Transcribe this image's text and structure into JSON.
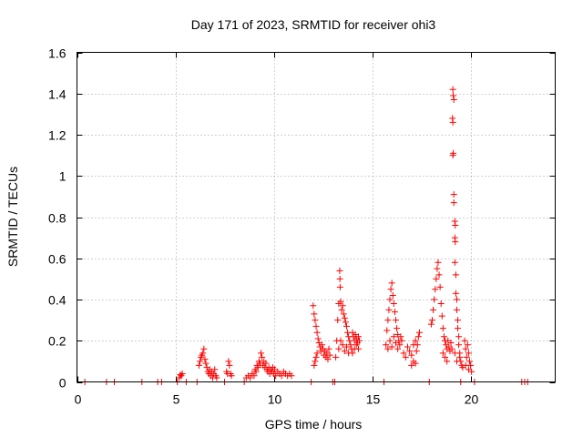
{
  "chart_data": {
    "type": "scatter",
    "title": "Day 171 of 2023, SRMTID for receiver ohi3",
    "xlabel": "GPS time / hours",
    "ylabel": "SRMTID / TECUs",
    "xlim": [
      0,
      24.3
    ],
    "ylim": [
      0,
      1.6
    ],
    "xticks": [
      0,
      5,
      10,
      15,
      20
    ],
    "xtick_labels": [
      "0",
      "5",
      "10",
      "15",
      "20"
    ],
    "yticks": [
      0,
      0.2,
      0.4,
      0.6,
      0.8,
      1.0,
      1.2,
      1.4,
      1.6
    ],
    "ytick_labels": [
      "0",
      "0.2",
      "0.4",
      "0.6",
      "0.8",
      "1",
      "1.2",
      "1.4",
      "1.6"
    ],
    "grid": true,
    "marker": "plus",
    "marker_color": "#ff0000",
    "series": [
      {
        "name": "SRMTID",
        "points": [
          [
            0.4,
            0.0
          ],
          [
            1.5,
            0.0
          ],
          [
            1.9,
            0.0
          ],
          [
            3.3,
            0.0
          ],
          [
            4.1,
            0.0
          ],
          [
            4.3,
            0.0
          ],
          [
            5.1,
            0.0
          ],
          [
            5.2,
            0.02
          ],
          [
            5.25,
            0.035
          ],
          [
            5.3,
            0.03
          ],
          [
            5.35,
            0.04
          ],
          [
            5.55,
            0.0
          ],
          [
            6.1,
            0.0
          ],
          [
            6.2,
            0.08
          ],
          [
            6.25,
            0.1
          ],
          [
            6.3,
            0.12
          ],
          [
            6.35,
            0.13
          ],
          [
            6.4,
            0.14
          ],
          [
            6.45,
            0.16
          ],
          [
            6.5,
            0.11
          ],
          [
            6.55,
            0.09
          ],
          [
            6.6,
            0.07
          ],
          [
            6.65,
            0.05
          ],
          [
            6.7,
            0.04
          ],
          [
            6.75,
            0.06
          ],
          [
            6.8,
            0.03
          ],
          [
            6.85,
            0.05
          ],
          [
            6.9,
            0.02
          ],
          [
            6.95,
            0.04
          ],
          [
            7.0,
            0.06
          ],
          [
            7.05,
            0.03
          ],
          [
            7.1,
            0.02
          ],
          [
            7.5,
            0.0
          ],
          [
            7.6,
            0.05
          ],
          [
            7.65,
            0.04
          ],
          [
            7.7,
            0.1
          ],
          [
            7.75,
            0.08
          ],
          [
            7.8,
            0.04
          ],
          [
            7.85,
            0.03
          ],
          [
            8.5,
            0.0
          ],
          [
            8.6,
            0.02
          ],
          [
            8.7,
            0.03
          ],
          [
            8.8,
            0.02
          ],
          [
            8.9,
            0.04
          ],
          [
            9.0,
            0.03
          ],
          [
            9.05,
            0.06
          ],
          [
            9.1,
            0.05
          ],
          [
            9.15,
            0.08
          ],
          [
            9.2,
            0.07
          ],
          [
            9.25,
            0.1
          ],
          [
            9.3,
            0.09
          ],
          [
            9.35,
            0.14
          ],
          [
            9.4,
            0.12
          ],
          [
            9.45,
            0.08
          ],
          [
            9.5,
            0.1
          ],
          [
            9.55,
            0.07
          ],
          [
            9.6,
            0.09
          ],
          [
            9.65,
            0.06
          ],
          [
            9.7,
            0.05
          ],
          [
            9.75,
            0.07
          ],
          [
            9.8,
            0.04
          ],
          [
            9.85,
            0.06
          ],
          [
            9.9,
            0.05
          ],
          [
            9.95,
            0.07
          ],
          [
            10.0,
            0.04
          ],
          [
            10.05,
            0.06
          ],
          [
            10.1,
            0.03
          ],
          [
            10.2,
            0.05
          ],
          [
            10.3,
            0.04
          ],
          [
            10.4,
            0.03
          ],
          [
            10.5,
            0.05
          ],
          [
            10.6,
            0.04
          ],
          [
            10.7,
            0.03
          ],
          [
            10.8,
            0.04
          ],
          [
            10.9,
            0.03
          ],
          [
            11.9,
            0.0
          ],
          [
            12.0,
            0.37
          ],
          [
            12.05,
            0.33
          ],
          [
            12.1,
            0.3
          ],
          [
            12.15,
            0.27
          ],
          [
            12.2,
            0.24
          ],
          [
            12.25,
            0.21
          ],
          [
            12.3,
            0.19
          ],
          [
            12.35,
            0.17
          ],
          [
            12.4,
            0.15
          ],
          [
            12.05,
            0.08
          ],
          [
            12.1,
            0.1
          ],
          [
            12.15,
            0.12
          ],
          [
            12.2,
            0.14
          ],
          [
            12.45,
            0.18
          ],
          [
            12.5,
            0.16
          ],
          [
            12.55,
            0.13
          ],
          [
            12.6,
            0.15
          ],
          [
            12.65,
            0.12
          ],
          [
            12.7,
            0.14
          ],
          [
            12.75,
            0.11
          ],
          [
            12.8,
            0.16
          ],
          [
            12.85,
            0.13
          ],
          [
            13.0,
            0.0
          ],
          [
            13.1,
            0.0
          ],
          [
            13.15,
            0.12
          ],
          [
            13.2,
            0.2
          ],
          [
            13.25,
            0.3
          ],
          [
            13.3,
            0.38
          ],
          [
            13.35,
            0.54
          ],
          [
            13.36,
            0.5
          ],
          [
            13.37,
            0.46
          ],
          [
            13.4,
            0.39
          ],
          [
            13.45,
            0.35
          ],
          [
            13.5,
            0.37
          ],
          [
            13.55,
            0.33
          ],
          [
            13.6,
            0.31
          ],
          [
            13.65,
            0.29
          ],
          [
            13.7,
            0.27
          ],
          [
            13.75,
            0.24
          ],
          [
            13.8,
            0.22
          ],
          [
            13.85,
            0.2
          ],
          [
            13.9,
            0.18
          ],
          [
            13.95,
            0.16
          ],
          [
            14.0,
            0.14
          ],
          [
            13.3,
            0.16
          ],
          [
            13.4,
            0.2
          ],
          [
            13.5,
            0.18
          ],
          [
            13.6,
            0.15
          ],
          [
            13.7,
            0.17
          ],
          [
            13.8,
            0.14
          ],
          [
            14.0,
            0.24
          ],
          [
            14.05,
            0.22
          ],
          [
            14.1,
            0.2
          ],
          [
            14.15,
            0.23
          ],
          [
            14.2,
            0.21
          ],
          [
            14.25,
            0.19
          ],
          [
            14.3,
            0.22
          ],
          [
            14.35,
            0.2
          ],
          [
            14.1,
            0.16
          ],
          [
            14.2,
            0.18
          ],
          [
            14.3,
            0.16
          ],
          [
            15.6,
            0.0
          ],
          [
            15.7,
            0.18
          ],
          [
            15.75,
            0.25
          ],
          [
            15.8,
            0.3
          ],
          [
            15.85,
            0.35
          ],
          [
            15.9,
            0.4
          ],
          [
            15.95,
            0.45
          ],
          [
            16.0,
            0.48
          ],
          [
            16.05,
            0.42
          ],
          [
            16.1,
            0.38
          ],
          [
            16.15,
            0.34
          ],
          [
            16.2,
            0.3
          ],
          [
            16.25,
            0.26
          ],
          [
            16.3,
            0.23
          ],
          [
            16.35,
            0.2
          ],
          [
            16.4,
            0.18
          ],
          [
            16.45,
            0.22
          ],
          [
            16.5,
            0.2
          ],
          [
            15.8,
            0.16
          ],
          [
            15.9,
            0.2
          ],
          [
            16.0,
            0.17
          ],
          [
            16.1,
            0.22
          ],
          [
            16.2,
            0.19
          ],
          [
            16.3,
            0.16
          ],
          [
            16.6,
            0.14
          ],
          [
            16.7,
            0.12
          ],
          [
            16.8,
            0.17
          ],
          [
            16.9,
            0.15
          ],
          [
            17.0,
            0.13
          ],
          [
            17.1,
            0.18
          ],
          [
            17.2,
            0.2
          ],
          [
            17.25,
            0.15
          ],
          [
            17.3,
            0.18
          ],
          [
            17.35,
            0.22
          ],
          [
            17.4,
            0.24
          ],
          [
            17.0,
            0.08
          ],
          [
            17.1,
            0.1
          ],
          [
            17.2,
            0.09
          ],
          [
            17.9,
            0.0
          ],
          [
            18.0,
            0.28
          ],
          [
            18.05,
            0.3
          ],
          [
            18.1,
            0.35
          ],
          [
            18.15,
            0.4
          ],
          [
            18.2,
            0.45
          ],
          [
            18.25,
            0.5
          ],
          [
            18.3,
            0.55
          ],
          [
            18.35,
            0.58
          ],
          [
            18.4,
            0.52
          ],
          [
            18.45,
            0.46
          ],
          [
            18.5,
            0.38
          ],
          [
            18.55,
            0.32
          ],
          [
            18.6,
            0.26
          ],
          [
            18.65,
            0.22
          ],
          [
            18.7,
            0.2
          ],
          [
            18.75,
            0.18
          ],
          [
            18.8,
            0.16
          ],
          [
            18.85,
            0.2
          ],
          [
            18.9,
            0.17
          ],
          [
            18.95,
            0.15
          ],
          [
            19.0,
            0.19
          ],
          [
            19.05,
            0.16
          ],
          [
            18.6,
            0.14
          ],
          [
            18.7,
            0.12
          ],
          [
            18.8,
            0.1
          ],
          [
            19.1,
            1.42
          ],
          [
            19.12,
            1.39
          ],
          [
            19.15,
            1.37
          ],
          [
            19.08,
            1.28
          ],
          [
            19.1,
            1.26
          ],
          [
            19.12,
            1.11
          ],
          [
            19.1,
            1.1
          ],
          [
            19.15,
            0.91
          ],
          [
            19.15,
            0.87
          ],
          [
            19.2,
            0.78
          ],
          [
            19.22,
            0.76
          ],
          [
            19.2,
            0.7
          ],
          [
            19.22,
            0.68
          ],
          [
            19.2,
            0.58
          ],
          [
            19.25,
            0.52
          ],
          [
            19.25,
            0.43
          ],
          [
            19.3,
            0.4
          ],
          [
            19.3,
            0.35
          ],
          [
            19.35,
            0.3
          ],
          [
            19.35,
            0.26
          ],
          [
            19.4,
            0.22
          ],
          [
            19.4,
            0.18
          ],
          [
            19.45,
            0.14
          ],
          [
            19.45,
            0.12
          ],
          [
            19.5,
            0.1
          ],
          [
            19.55,
            0.08
          ],
          [
            19.6,
            0.07
          ],
          [
            19.3,
            0.1
          ],
          [
            19.2,
            0.14
          ],
          [
            19.5,
            0.0
          ],
          [
            19.7,
            0.2
          ],
          [
            19.75,
            0.16
          ],
          [
            19.8,
            0.12
          ],
          [
            19.85,
            0.18
          ],
          [
            19.9,
            0.14
          ],
          [
            19.95,
            0.1
          ],
          [
            20.0,
            0.08
          ],
          [
            20.05,
            0.05
          ],
          [
            19.75,
            0.08
          ],
          [
            19.9,
            0.06
          ],
          [
            20.2,
            0.0
          ],
          [
            22.6,
            0.0
          ],
          [
            22.75,
            0.0
          ],
          [
            22.9,
            0.0
          ]
        ]
      }
    ]
  }
}
